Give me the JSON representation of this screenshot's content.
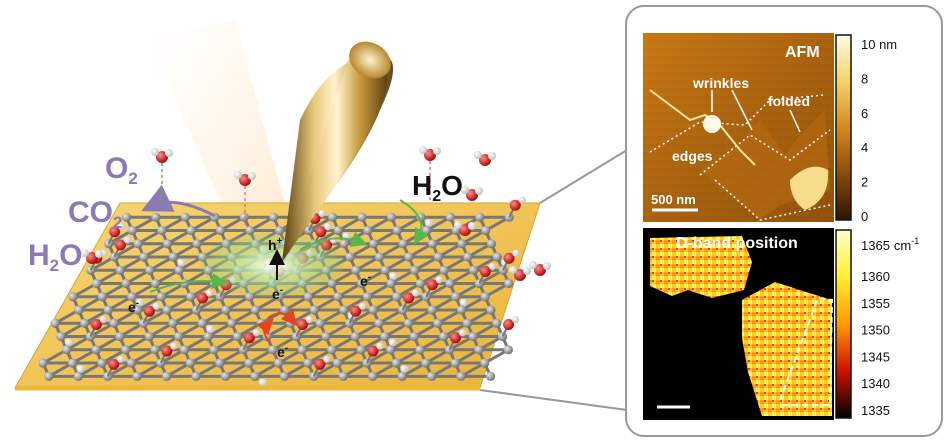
{
  "scene": {
    "o2_label": "O",
    "o2_sub": "2",
    "co2_label": "CO",
    "co2_sub": "2",
    "h2o_left_label": "H",
    "h2o_left_mid": "2",
    "h2o_left_end": "O",
    "h2o_right_label": "H",
    "h2o_right_mid": "2",
    "h2o_right_end": "O",
    "hole_label": "h",
    "hole_sup": "+",
    "electron_center": "e",
    "electron_center_sup": "-",
    "electron_right": "e",
    "electron_right_sup": "-",
    "electron_left": "e",
    "electron_left_sup": "-",
    "electron_bottom": "e",
    "electron_bottom_sup": "-"
  },
  "afm_panel": {
    "title": "AFM",
    "labels": {
      "wrinkles": "wrinkles",
      "folded": "folded",
      "edges": "edges"
    },
    "scalebar": "500 nm",
    "colorbar": {
      "ticks": [
        "10 nm",
        "8",
        "6",
        "4",
        "2",
        "0"
      ],
      "colors": [
        "#fffbe6",
        "#f5d36a",
        "#d7891a",
        "#8a4a0a",
        "#2b1503"
      ]
    }
  },
  "raman_panel": {
    "title": "D-band position",
    "colorbar": {
      "top_value": "1365",
      "top_unit": "cm",
      "top_exp": "-1",
      "ticks": [
        "1360",
        "1355",
        "1350",
        "1345",
        "1340",
        "1335"
      ],
      "colors": [
        "#ffffcc",
        "#ffee33",
        "#ff9900",
        "#cc1100",
        "#000000"
      ]
    }
  },
  "colors": {
    "substrate": "#f1c453",
    "carbon": "#8f8f8f",
    "oxygen": "#d91414",
    "hydrogen": "#ffffff",
    "arrow_purple": "#8a7ab6",
    "frame": "#999999"
  }
}
